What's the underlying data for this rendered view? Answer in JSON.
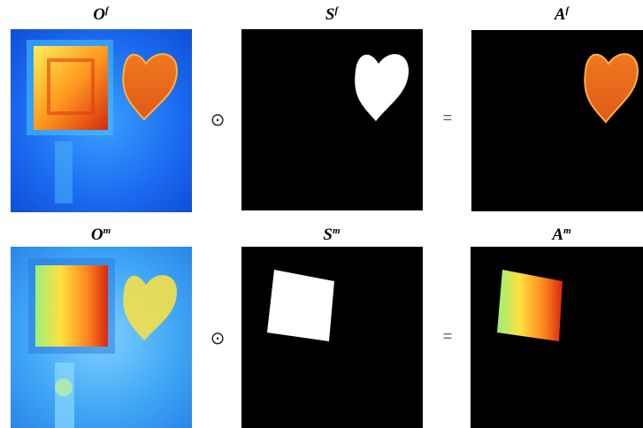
{
  "rows": [
    {
      "labels": [
        {
          "base": "O",
          "sup": "f"
        },
        {
          "base": "S",
          "sup": "f"
        },
        {
          "base": "A",
          "sup": "f"
        }
      ],
      "operator": "⊙",
      "equals": "="
    },
    {
      "labels": [
        {
          "base": "O",
          "sup": "m"
        },
        {
          "base": "S",
          "sup": "m"
        },
        {
          "base": "A",
          "sup": "m"
        }
      ],
      "operator": "⊙",
      "equals": "="
    }
  ]
}
